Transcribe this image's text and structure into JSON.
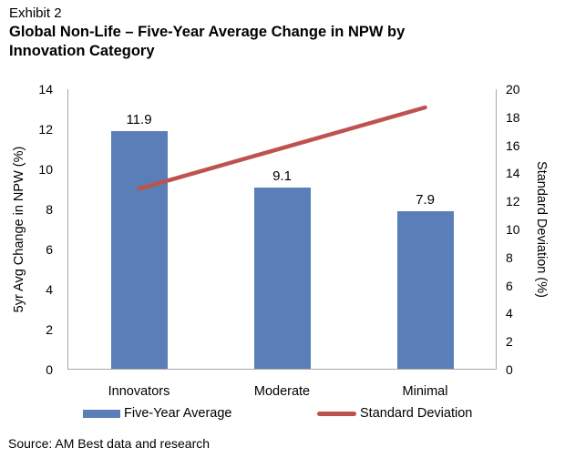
{
  "exhibit_label": "Exhibit 2",
  "title_line1": "Global Non-Life – Five-Year Average Change in NPW by",
  "title_line2": "Innovation Category",
  "source": "Source: AM Best data and research",
  "colors": {
    "bar": "#5A7EB8",
    "line": "#BE524E",
    "axis": "#A7A7A7",
    "text": "#000000"
  },
  "chart_data": {
    "type": "bar",
    "subtype": "combo-bar-line-dual-axis",
    "categories": [
      "Innovators",
      "Moderate",
      "Minimal"
    ],
    "series": [
      {
        "name": "Five-Year Average",
        "type": "bar",
        "axis": "left",
        "values": [
          11.9,
          9.1,
          7.9
        ],
        "data_labels": [
          "11.9",
          "9.1",
          "7.9"
        ],
        "color": "#5A7EB8"
      },
      {
        "name": "Standard Deviation",
        "type": "line",
        "axis": "right",
        "values": [
          12.9,
          15.8,
          18.7
        ],
        "color": "#BE524E"
      }
    ],
    "left_axis": {
      "label": "5yr Avg Change in NPW (%)",
      "min": 0,
      "max": 14,
      "step": 2
    },
    "right_axis": {
      "label": "Standard Deviation (%)",
      "min": 0,
      "max": 20,
      "step": 2
    },
    "grid": false,
    "legend_position": "bottom",
    "legend": [
      {
        "label": "Five-Year Average",
        "swatch": "bar"
      },
      {
        "label": "Standard Deviation",
        "swatch": "line"
      }
    ]
  }
}
